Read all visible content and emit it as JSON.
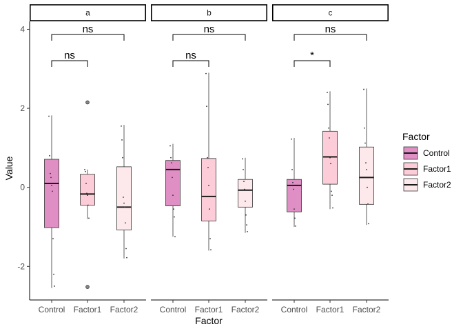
{
  "chart_data": {
    "type": "boxplot",
    "xlabel": "Factor",
    "ylabel": "Value",
    "ylim": [
      -2.85,
      4.2
    ],
    "yticks": [
      -2,
      0,
      2,
      4
    ],
    "categories": [
      "Control",
      "Factor1",
      "Factor2"
    ],
    "legend": {
      "title": "Factor",
      "placement": "right",
      "entries": [
        "Control",
        "Factor1",
        "Factor2"
      ]
    },
    "colors": {
      "Control": "#e08fc4",
      "Factor1": "#fccdd8",
      "Factor2": "#fde9ec"
    },
    "panels": [
      {
        "label": "a",
        "boxes": [
          {
            "category": "Control",
            "whisker_low": -2.55,
            "q1": -1.02,
            "median": 0.1,
            "q3": 0.71,
            "whisker_high": 1.82,
            "outliers": [],
            "points": [
              1.8,
              0.8,
              0.35,
              0.25,
              0.05,
              -0.1,
              -1.3,
              -2.2,
              -2.5
            ]
          },
          {
            "category": "Factor1",
            "whisker_low": -0.8,
            "q1": -0.45,
            "median": -0.17,
            "q3": 0.33,
            "whisker_high": 0.45,
            "outliers": [
              2.15,
              -2.52
            ],
            "points": [
              0.45,
              0.4,
              0.1,
              -0.15,
              -0.2,
              -0.45,
              -0.78
            ]
          },
          {
            "category": "Factor2",
            "whisker_low": -1.8,
            "q1": -1.08,
            "median": -0.5,
            "q3": 0.52,
            "whisker_high": 1.58,
            "outliers": [],
            "points": [
              1.55,
              1.2,
              0.75,
              -0.25,
              -0.4,
              -0.5,
              -0.9,
              -1.55,
              -1.78
            ]
          }
        ],
        "comparisons": [
          {
            "groups": [
              "Control",
              "Factor1"
            ],
            "label": "ns"
          },
          {
            "groups": [
              "Control",
              "Factor2"
            ],
            "label": "ns"
          }
        ]
      },
      {
        "label": "b",
        "boxes": [
          {
            "category": "Control",
            "whisker_low": -1.25,
            "q1": -0.47,
            "median": 0.45,
            "q3": 0.68,
            "whisker_high": 1.1,
            "outliers": [],
            "points": [
              1.05,
              0.75,
              0.62,
              0.25,
              -0.2,
              -0.55,
              -0.75,
              -1.25
            ]
          },
          {
            "category": "Factor1",
            "whisker_low": -1.6,
            "q1": -0.85,
            "median": -0.23,
            "q3": 0.73,
            "whisker_high": 2.9,
            "outliers": [],
            "points": [
              2.88,
              2.05,
              0.75,
              0.5,
              0.05,
              -0.55,
              -1.3,
              -1.58
            ]
          },
          {
            "category": "Factor2",
            "whisker_low": -1.15,
            "q1": -0.5,
            "median": -0.07,
            "q3": 0.2,
            "whisker_high": 0.75,
            "outliers": [],
            "points": [
              0.72,
              0.45,
              0.15,
              -0.05,
              -0.35,
              -0.7,
              -0.95,
              -1.12
            ]
          }
        ],
        "comparisons": [
          {
            "groups": [
              "Control",
              "Factor1"
            ],
            "label": "ns"
          },
          {
            "groups": [
              "Control",
              "Factor2"
            ],
            "label": "ns"
          }
        ]
      },
      {
        "label": "c",
        "boxes": [
          {
            "category": "Control",
            "whisker_low": -1.0,
            "q1": -0.62,
            "median": 0.05,
            "q3": 0.2,
            "whisker_high": 1.25,
            "outliers": [],
            "points": [
              1.22,
              0.45,
              0.12,
              -0.05,
              -0.55,
              -0.78,
              -0.98
            ]
          },
          {
            "category": "Factor1",
            "whisker_low": -0.55,
            "q1": 0.08,
            "median": 0.77,
            "q3": 1.42,
            "whisker_high": 2.43,
            "outliers": [],
            "points": [
              2.4,
              2.1,
              1.5,
              1.25,
              0.75,
              0.6,
              -0.1,
              -0.2,
              -0.52
            ]
          },
          {
            "category": "Factor2",
            "whisker_low": -0.95,
            "q1": -0.43,
            "median": 0.25,
            "q3": 1.02,
            "whisker_high": 2.5,
            "outliers": [],
            "points": [
              2.48,
              1.5,
              1.12,
              0.62,
              0.45,
              0.0,
              -0.42,
              -0.92
            ]
          }
        ],
        "comparisons": [
          {
            "groups": [
              "Control",
              "Factor1"
            ],
            "label": "*"
          },
          {
            "groups": [
              "Control",
              "Factor2"
            ],
            "label": "ns"
          }
        ]
      }
    ]
  }
}
